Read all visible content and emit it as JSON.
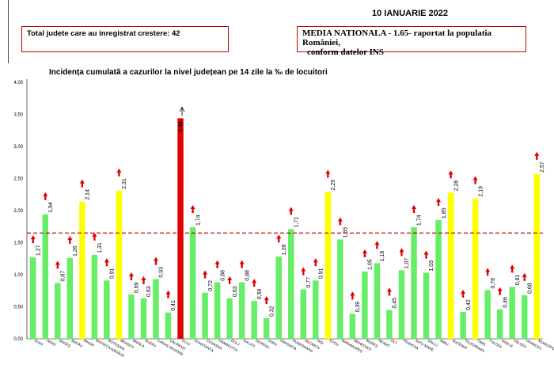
{
  "header": {
    "date": "10 IANUARIE 2022",
    "total_label": "Total judete care au inregistrat crestere: 42",
    "national_line1": "MEDIA NATIONALA - 1.65-  raportat la populatia României,",
    "national_line2": "conform datelor INS"
  },
  "colors": {
    "green": "#66ee66",
    "yellow": "#ffff00",
    "red": "#e00000",
    "arrow": "#e00000",
    "average_line": "#cc0000"
  },
  "chart_data": {
    "type": "bar",
    "title": "Incidența cumulată a cazurilor la nivel județean pe 14 zile la ‰ de locuitori",
    "ylim": [
      0,
      4
    ],
    "yticks": [
      "0,00",
      "0,50",
      "1,00",
      "1,50",
      "2,00",
      "2,50",
      "3,00",
      "3,50",
      "4,00"
    ],
    "average": 1.65,
    "categories": [
      "ALBA",
      "ARAD",
      "ARGEȘ",
      "BACĂU",
      "BIHOR",
      "BISTRIȚA-NĂSĂUD",
      "BOTOȘANI",
      "BRAȘOV",
      "BRĂILA",
      "BUZĂU",
      "CARAȘ-SEVERIN",
      "CĂLĂRAȘI",
      "CLUJ",
      "CONSTANȚA",
      "COVASNA",
      "DÂMBOVIȚA",
      "DOLJ",
      "GALAȚI",
      "GIURGIU",
      "GORJ",
      "HARGHITA",
      "HUNEDOARA",
      "IALOMIȚA",
      "IAȘI",
      "ILFOV",
      "MARAMUREȘ",
      "MEHEDINȚI",
      "MUREȘ",
      "NEAMȚ",
      "OLT",
      "PRAHOVA",
      "SATU MARE",
      "SĂLAJ",
      "SIBIU",
      "SUCEAVA",
      "TELEORMAN",
      "TIMIȘ",
      "TULCEA",
      "VASLUI",
      "VÂLCEA",
      "VRANCEA",
      "MUNICIPIUL BUCUREȘTI"
    ],
    "values": [
      1.27,
      1.94,
      0.87,
      1.26,
      2.14,
      1.31,
      0.91,
      2.31,
      0.69,
      0.63,
      0.93,
      0.41,
      3.44,
      1.74,
      0.72,
      0.88,
      0.63,
      0.88,
      0.59,
      0.32,
      1.28,
      1.71,
      0.77,
      0.91,
      2.29,
      1.55,
      0.39,
      1.05,
      1.18,
      0.45,
      1.07,
      1.74,
      1.03,
      1.85,
      2.28,
      0.42,
      2.19,
      0.76,
      0.46,
      0.81,
      0.68,
      2.57
    ],
    "value_labels": [
      "1,27",
      "1,94",
      "0,87",
      "1,26",
      "2,14",
      "1,31",
      "0,91",
      "2,31",
      "0,69",
      "0,63",
      "0,93",
      "0,41",
      "3.44",
      "1,74",
      "0,72",
      "0,88",
      "0,63",
      "0,88",
      "0,59",
      "0,32",
      "1,28",
      "1,71",
      "0,77",
      "0,91",
      "2,29",
      "1,55",
      "0,39",
      "1,05",
      "1,18",
      "0,45",
      "1,07",
      "1,74",
      "1,03",
      "1,85",
      "2,28",
      "0,42",
      "2,19",
      "0,76",
      "0,46",
      "0,81",
      "0,68",
      "2,57"
    ],
    "bar_colors": [
      "green",
      "green",
      "green",
      "green",
      "yellow",
      "green",
      "green",
      "yellow",
      "green",
      "green",
      "green",
      "green",
      "red",
      "green",
      "green",
      "green",
      "green",
      "green",
      "green",
      "green",
      "green",
      "green",
      "green",
      "green",
      "yellow",
      "green",
      "green",
      "green",
      "green",
      "green",
      "green",
      "green",
      "green",
      "green",
      "yellow",
      "green",
      "yellow",
      "green",
      "green",
      "green",
      "green",
      "yellow"
    ],
    "increase": true
  }
}
